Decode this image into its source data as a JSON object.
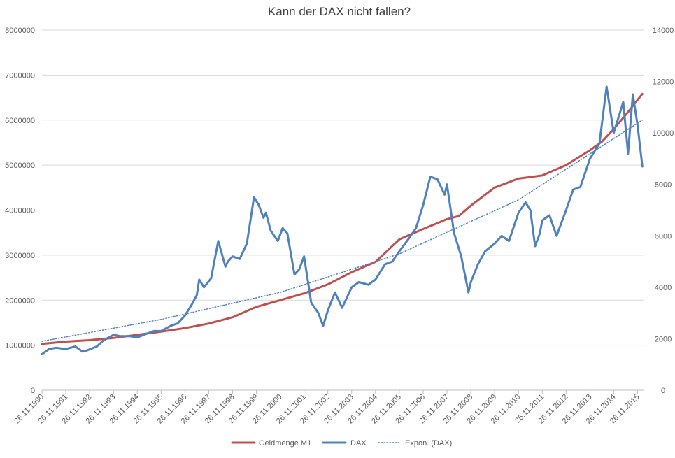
{
  "chart_data": {
    "type": "line",
    "title": "Kann der DAX nicht fallen?",
    "x_tick_labels": [
      "26.11.1990",
      "26.11.1991",
      "26.11.1992",
      "26.11.1993",
      "26.11.1994",
      "26.11.1995",
      "26.11.1996",
      "26.11.1997",
      "26.11.1998",
      "26.11.1999",
      "26.11.2000",
      "26.11.2001",
      "26.11.2002",
      "26.11.2003",
      "26.11.2004",
      "26.11.2005",
      "26.11.2006",
      "26.11.2007",
      "26.11.2008",
      "26.11.2009",
      "26.11.2010",
      "26.11.2011",
      "26.11.2012",
      "26.11.2013",
      "26.11.2014",
      "26.11.2015"
    ],
    "x_range": [
      "1990-11-26",
      "2016-02-26"
    ],
    "y_left": {
      "min": 0,
      "max": 8000000,
      "ticks": [
        "0",
        "1000000",
        "2000000",
        "3000000",
        "4000000",
        "5000000",
        "6000000",
        "7000000",
        "8000000"
      ]
    },
    "y_right": {
      "min": 0,
      "max": 14000,
      "ticks": [
        "0",
        "2000",
        "4000",
        "6000",
        "8000",
        "10000",
        "12000",
        "14000"
      ]
    },
    "grid": true,
    "legend_position": "bottom",
    "series": [
      {
        "name": "Geldmenge M1",
        "axis": "left",
        "color": "#C0504D",
        "style": "solid",
        "x": [
          1990.9,
          1991.9,
          1992.9,
          1993.9,
          1994.9,
          1995.9,
          1996.9,
          1997.9,
          1998.9,
          1999.9,
          2000.9,
          2001.9,
          2002.9,
          2003.9,
          2004.9,
          2005.3,
          2005.9,
          2006.9,
          2007.9,
          2008.4,
          2008.9,
          2009.9,
          2010.9,
          2011.9,
          2012.9,
          2013.9,
          2014.4,
          2014.9,
          2015.5,
          2015.9,
          2016.1
        ],
        "values": [
          1030000,
          1080000,
          1110000,
          1160000,
          1230000,
          1300000,
          1380000,
          1480000,
          1620000,
          1850000,
          2000000,
          2150000,
          2350000,
          2620000,
          2850000,
          3050000,
          3350000,
          3580000,
          3800000,
          3870000,
          4100000,
          4500000,
          4700000,
          4770000,
          5000000,
          5330000,
          5520000,
          5800000,
          6180000,
          6450000,
          6580000
        ]
      },
      {
        "name": "DAX",
        "axis": "right",
        "color": "#4F81BD",
        "style": "solid",
        "x": [
          1990.9,
          1991.2,
          1991.5,
          1991.9,
          1992.3,
          1992.6,
          1992.8,
          1993.2,
          1993.5,
          1993.9,
          1994.2,
          1994.6,
          1994.9,
          1995.3,
          1995.6,
          1995.9,
          1996.3,
          1996.6,
          1996.9,
          1997.2,
          1997.4,
          1997.5,
          1997.7,
          1998.0,
          1998.3,
          1998.6,
          1998.7,
          1998.9,
          1999.2,
          1999.5,
          1999.8,
          2000.0,
          2000.2,
          2000.3,
          2000.5,
          2000.8,
          2001.0,
          2001.2,
          2001.5,
          2001.7,
          2001.9,
          2002.2,
          2002.5,
          2002.7,
          2002.9,
          2003.2,
          2003.5,
          2003.9,
          2004.2,
          2004.6,
          2004.9,
          2005.3,
          2005.6,
          2005.9,
          2006.3,
          2006.6,
          2006.9,
          2007.2,
          2007.5,
          2007.8,
          2007.9,
          2008.2,
          2008.5,
          2008.8,
          2008.9,
          2009.2,
          2009.5,
          2009.9,
          2010.2,
          2010.5,
          2010.9,
          2011.2,
          2011.4,
          2011.6,
          2011.8,
          2011.9,
          2012.2,
          2012.5,
          2012.9,
          2013.2,
          2013.5,
          2013.9,
          2014.3,
          2014.6,
          2014.9,
          2015.3,
          2015.5,
          2015.7,
          2015.9,
          2016.1
        ],
        "values": [
          1400,
          1600,
          1650,
          1600,
          1700,
          1500,
          1550,
          1700,
          1950,
          2150,
          2100,
          2100,
          2050,
          2200,
          2300,
          2300,
          2500,
          2600,
          2900,
          3350,
          3700,
          4300,
          4000,
          4350,
          5800,
          4800,
          5000,
          5200,
          5100,
          5700,
          7500,
          7200,
          6700,
          6900,
          6200,
          5800,
          6300,
          6100,
          4500,
          4700,
          5200,
          3400,
          3000,
          2500,
          3100,
          3800,
          3200,
          4000,
          4200,
          4100,
          4300,
          4900,
          5000,
          5400,
          5900,
          6300,
          7200,
          8300,
          8200,
          7600,
          8000,
          6100,
          5200,
          3800,
          4200,
          4900,
          5400,
          5700,
          6000,
          5800,
          6900,
          7300,
          7000,
          5600,
          6100,
          6600,
          6800,
          6000,
          7000,
          7800,
          7900,
          9000,
          9600,
          11800,
          10000,
          11200,
          9200,
          11500,
          10300,
          8700
        ]
      },
      {
        "name": "Expon. (DAX)",
        "axis": "right",
        "color": "#4F81BD",
        "style": "dotted",
        "x": [
          1990.9,
          1995.9,
          2000.9,
          2005.9,
          2010.9,
          2016.1
        ],
        "values": [
          1900,
          2750,
          3800,
          5300,
          7400,
          10500
        ]
      }
    ]
  }
}
